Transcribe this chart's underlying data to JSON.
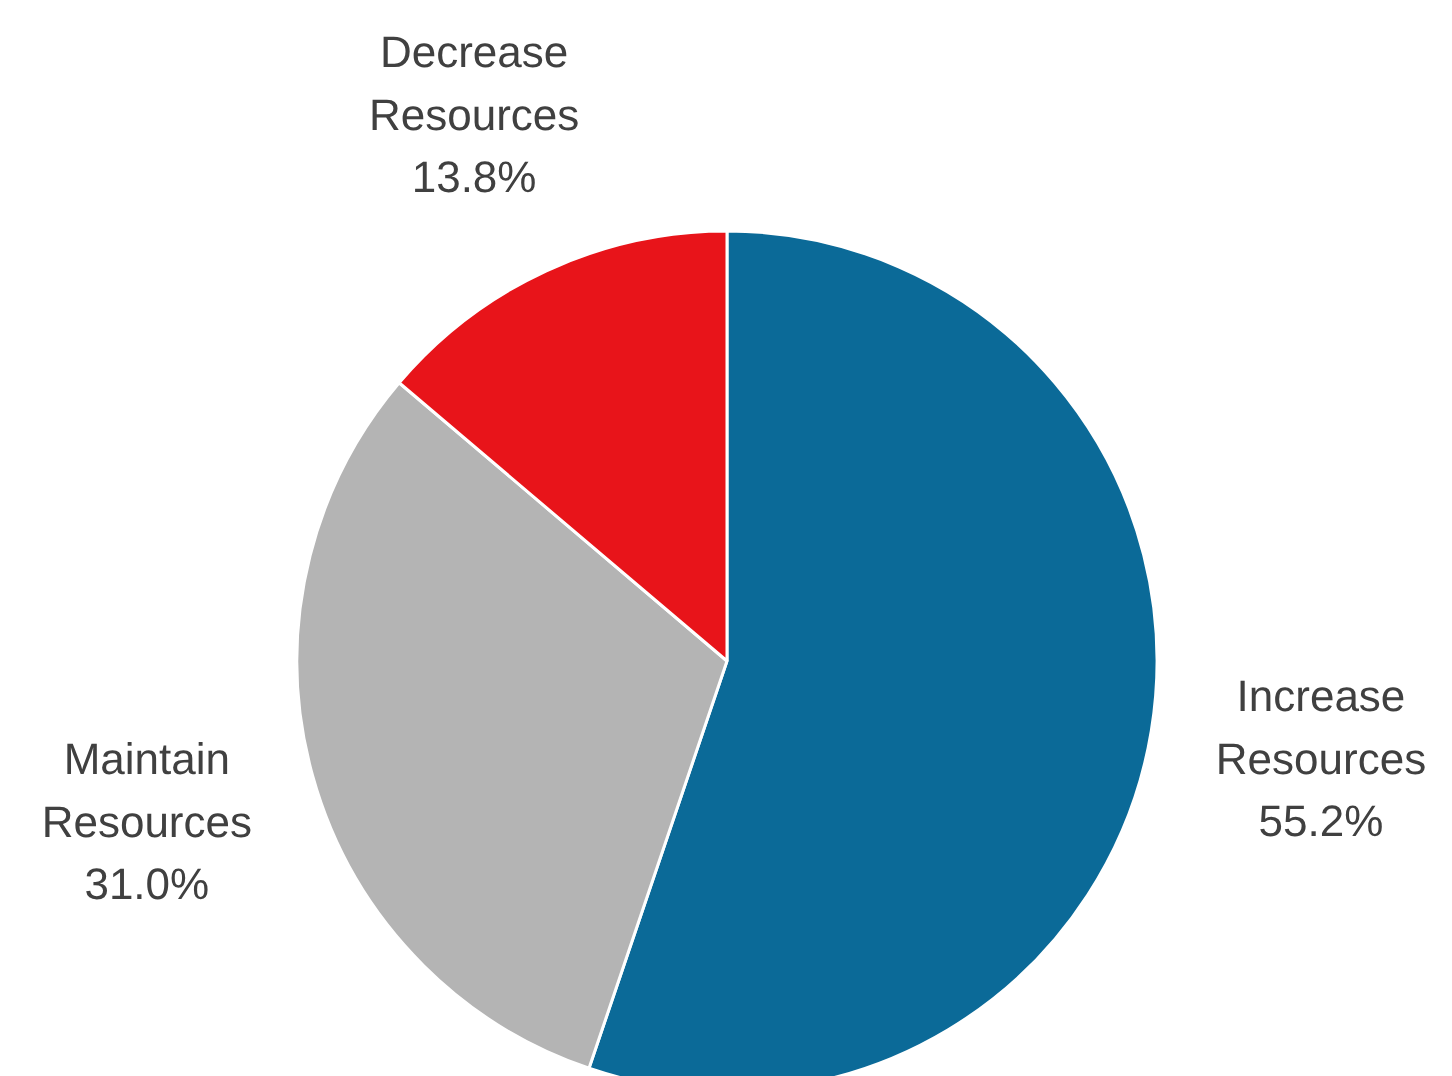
{
  "chart_data": {
    "type": "pie",
    "categories": [
      "Increase Resources",
      "Maintain Resources",
      "Decrease Resources"
    ],
    "values": [
      55.2,
      31.0,
      13.8
    ],
    "colors": [
      "#0b6a98",
      "#b4b4b4",
      "#e8141a"
    ],
    "value_labels": [
      "55.2%",
      "31.0%",
      "13.8%"
    ],
    "legend": false
  }
}
